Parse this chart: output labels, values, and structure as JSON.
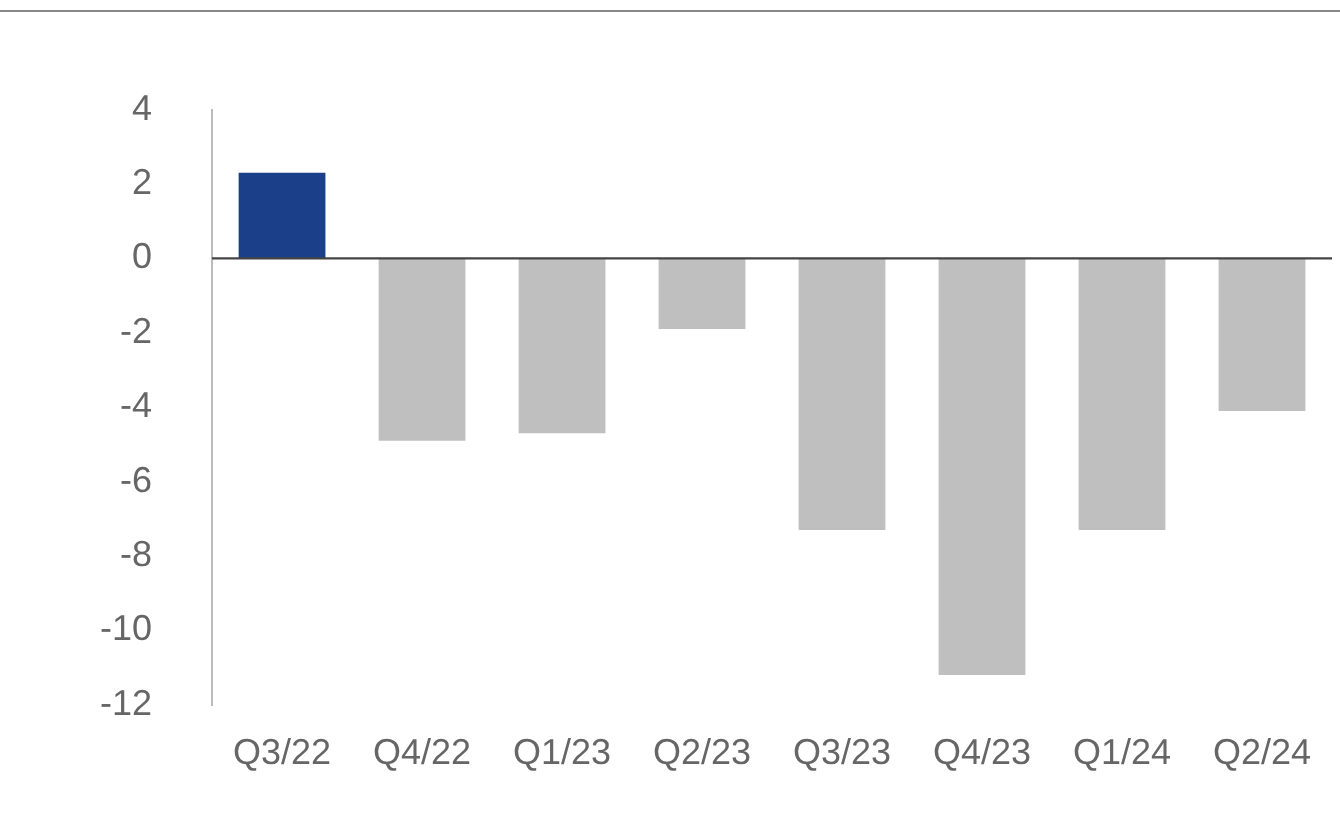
{
  "chart_data": {
    "type": "bar",
    "categories": [
      "Q3/22",
      "Q4/22",
      "Q1/23",
      "Q2/23",
      "Q3/23",
      "Q4/23",
      "Q1/24",
      "Q2/24"
    ],
    "values": [
      2.3,
      -4.9,
      -4.7,
      -1.9,
      -7.3,
      -11.2,
      -7.3,
      -4.1
    ],
    "colors": [
      "#1c3f8a",
      "#bfbfbf",
      "#bfbfbf",
      "#bfbfbf",
      "#bfbfbf",
      "#bfbfbf",
      "#bfbfbf",
      "#bfbfbf"
    ],
    "ylim": [
      -12,
      4
    ],
    "yticks": [
      -12,
      -10,
      -8,
      -6,
      -4,
      -2,
      0,
      2,
      4
    ],
    "ref_lines": [
      {
        "axis": "y",
        "value": 0,
        "color": "#444444"
      }
    ],
    "grid": false,
    "legend": false
  }
}
